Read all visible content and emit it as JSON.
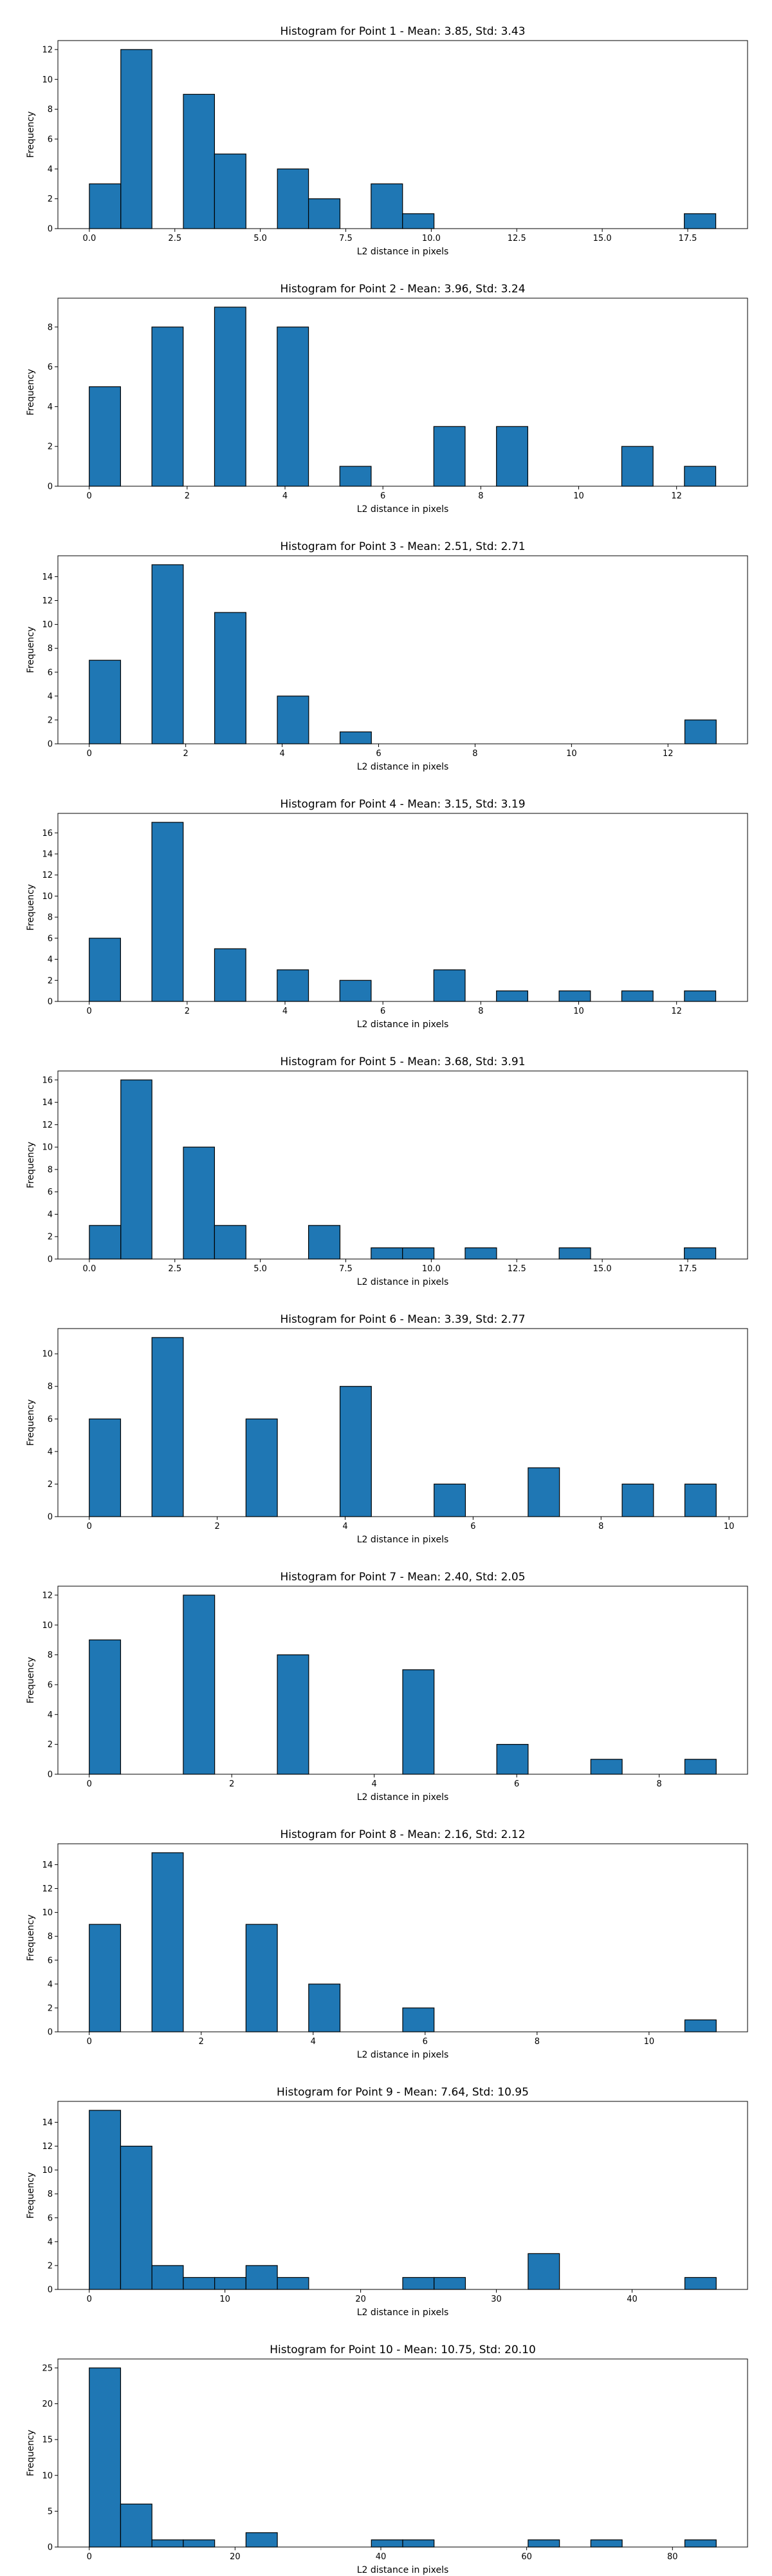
{
  "chart_data": [
    {
      "type": "bar",
      "title": "Histogram for Point 1 - Mean: 3.85, Std: 3.43",
      "xlabel": "L2 distance in pixels",
      "ylabel": "Frequency",
      "xlim": [
        -0.92,
        19.25
      ],
      "ylim": [
        0,
        12.6
      ],
      "xticks": [
        0.0,
        2.5,
        5.0,
        7.5,
        10.0,
        12.5,
        15.0,
        17.5
      ],
      "xtick_labels": [
        "0.0",
        "2.5",
        "5.0",
        "7.5",
        "10.0",
        "12.5",
        "15.0",
        "17.5"
      ],
      "yticks": [
        0,
        2,
        4,
        6,
        8,
        10,
        12
      ],
      "bin_edges": [
        0.0,
        0.92,
        1.83,
        2.75,
        3.66,
        4.58,
        5.5,
        6.41,
        7.33,
        8.24,
        9.16,
        10.08,
        10.99,
        11.91,
        12.82,
        13.74,
        14.66,
        15.57,
        16.49,
        17.4,
        18.32
      ],
      "values": [
        3,
        12,
        0,
        9,
        5,
        0,
        4,
        2,
        0,
        3,
        1,
        0,
        0,
        0,
        0,
        0,
        0,
        0,
        0,
        1
      ]
    },
    {
      "type": "bar",
      "title": "Histogram for Point 2 - Mean: 3.96, Std: 3.24",
      "xlabel": "L2 distance in pixels",
      "ylabel": "Frequency",
      "xlim": [
        -0.64,
        13.45
      ],
      "ylim": [
        0,
        9.45
      ],
      "xticks": [
        0,
        2,
        4,
        6,
        8,
        10,
        12
      ],
      "xtick_labels": [
        "0",
        "2",
        "4",
        "6",
        "8",
        "10",
        "12"
      ],
      "yticks": [
        0,
        2,
        4,
        6,
        8
      ],
      "bin_edges": [
        0.0,
        0.64,
        1.28,
        1.92,
        2.56,
        3.2,
        3.84,
        4.48,
        5.12,
        5.76,
        6.4,
        7.04,
        7.68,
        8.32,
        8.96,
        9.6,
        10.24,
        10.88,
        11.52,
        12.16,
        12.8
      ],
      "values": [
        5,
        0,
        8,
        0,
        9,
        0,
        8,
        0,
        1,
        0,
        0,
        3,
        0,
        3,
        0,
        0,
        0,
        2,
        0,
        1
      ]
    },
    {
      "type": "bar",
      "title": "Histogram for Point 3 - Mean: 2.51, Std: 2.71",
      "xlabel": "L2 distance in pixels",
      "ylabel": "Frequency",
      "xlim": [
        -0.65,
        13.65
      ],
      "ylim": [
        0,
        15.75
      ],
      "xticks": [
        0,
        2,
        4,
        6,
        8,
        10,
        12
      ],
      "xtick_labels": [
        "0",
        "2",
        "4",
        "6",
        "8",
        "10",
        "12"
      ],
      "yticks": [
        0,
        2,
        4,
        6,
        8,
        10,
        12,
        14
      ],
      "bin_edges": [
        0.0,
        0.65,
        1.3,
        1.95,
        2.6,
        3.25,
        3.9,
        4.55,
        5.2,
        5.85,
        6.5,
        7.15,
        7.8,
        8.45,
        9.1,
        9.75,
        10.4,
        11.05,
        11.7,
        12.35,
        13.0
      ],
      "values": [
        7,
        0,
        15,
        0,
        11,
        0,
        4,
        0,
        1,
        0,
        0,
        0,
        0,
        0,
        0,
        0,
        0,
        0,
        0,
        2
      ]
    },
    {
      "type": "bar",
      "title": "Histogram for Point 4 - Mean: 3.15, Std: 3.19",
      "xlabel": "L2 distance in pixels",
      "ylabel": "Frequency",
      "xlim": [
        -0.64,
        13.45
      ],
      "ylim": [
        0,
        17.85
      ],
      "xticks": [
        0,
        2,
        4,
        6,
        8,
        10,
        12
      ],
      "xtick_labels": [
        "0",
        "2",
        "4",
        "6",
        "8",
        "10",
        "12"
      ],
      "yticks": [
        0,
        2,
        4,
        6,
        8,
        10,
        12,
        14,
        16
      ],
      "bin_edges": [
        0.0,
        0.64,
        1.28,
        1.92,
        2.56,
        3.2,
        3.84,
        4.48,
        5.12,
        5.76,
        6.4,
        7.04,
        7.68,
        8.32,
        8.96,
        9.6,
        10.24,
        10.88,
        11.52,
        12.16,
        12.8
      ],
      "values": [
        6,
        0,
        17,
        0,
        5,
        0,
        3,
        0,
        2,
        0,
        0,
        3,
        0,
        1,
        0,
        1,
        0,
        1,
        0,
        1
      ]
    },
    {
      "type": "bar",
      "title": "Histogram for Point 5 - Mean: 3.68, Std: 3.91",
      "xlabel": "L2 distance in pixels",
      "ylabel": "Frequency",
      "xlim": [
        -0.92,
        19.25
      ],
      "ylim": [
        0,
        16.8
      ],
      "xticks": [
        0.0,
        2.5,
        5.0,
        7.5,
        10.0,
        12.5,
        15.0,
        17.5
      ],
      "xtick_labels": [
        "0.0",
        "2.5",
        "5.0",
        "7.5",
        "10.0",
        "12.5",
        "15.0",
        "17.5"
      ],
      "yticks": [
        0,
        2,
        4,
        6,
        8,
        10,
        12,
        14,
        16
      ],
      "bin_edges": [
        0.0,
        0.92,
        1.83,
        2.75,
        3.66,
        4.58,
        5.5,
        6.41,
        7.33,
        8.24,
        9.16,
        10.08,
        10.99,
        11.91,
        12.82,
        13.74,
        14.66,
        15.57,
        16.49,
        17.4,
        18.32
      ],
      "values": [
        3,
        16,
        0,
        10,
        3,
        0,
        0,
        3,
        0,
        1,
        1,
        0,
        1,
        0,
        0,
        1,
        0,
        0,
        0,
        1
      ]
    },
    {
      "type": "bar",
      "title": "Histogram for Point 6 - Mean: 3.39, Std: 2.77",
      "xlabel": "L2 distance in pixels",
      "ylabel": "Frequency",
      "xlim": [
        -0.49,
        10.29
      ],
      "ylim": [
        0,
        11.55
      ],
      "xticks": [
        0,
        2,
        4,
        6,
        8,
        10
      ],
      "xtick_labels": [
        "0",
        "2",
        "4",
        "6",
        "8",
        "10"
      ],
      "yticks": [
        0,
        2,
        4,
        6,
        8,
        10
      ],
      "bin_edges": [
        0.0,
        0.49,
        0.98,
        1.47,
        1.96,
        2.45,
        2.94,
        3.43,
        3.92,
        4.41,
        4.9,
        5.39,
        5.88,
        6.37,
        6.86,
        7.35,
        7.84,
        8.33,
        8.82,
        9.31,
        9.8
      ],
      "values": [
        6,
        0,
        11,
        0,
        0,
        6,
        0,
        0,
        8,
        0,
        0,
        2,
        0,
        0,
        3,
        0,
        0,
        2,
        0,
        2
      ]
    },
    {
      "type": "bar",
      "title": "Histogram for Point 7 - Mean: 2.40, Std: 2.05",
      "xlabel": "L2 distance in pixels",
      "ylabel": "Frequency",
      "xlim": [
        -0.44,
        9.24
      ],
      "ylim": [
        0,
        12.6
      ],
      "xticks": [
        0,
        2,
        4,
        6,
        8
      ],
      "xtick_labels": [
        "0",
        "2",
        "4",
        "6",
        "8"
      ],
      "yticks": [
        0,
        2,
        4,
        6,
        8,
        10,
        12
      ],
      "bin_edges": [
        0.0,
        0.44,
        0.88,
        1.32,
        1.76,
        2.2,
        2.64,
        3.08,
        3.52,
        3.96,
        4.4,
        4.84,
        5.28,
        5.72,
        6.16,
        6.6,
        7.04,
        7.48,
        7.92,
        8.36,
        8.8
      ],
      "values": [
        9,
        0,
        0,
        12,
        0,
        0,
        8,
        0,
        0,
        0,
        7,
        0,
        0,
        2,
        0,
        0,
        1,
        0,
        0,
        1
      ]
    },
    {
      "type": "bar",
      "title": "Histogram for Point 8 - Mean: 2.16, Std: 2.12",
      "xlabel": "L2 distance in pixels",
      "ylabel": "Frequency",
      "xlim": [
        -0.56,
        11.76
      ],
      "ylim": [
        0,
        15.75
      ],
      "xticks": [
        0,
        2,
        4,
        6,
        8,
        10
      ],
      "xtick_labels": [
        "0",
        "2",
        "4",
        "6",
        "8",
        "10"
      ],
      "yticks": [
        0,
        2,
        4,
        6,
        8,
        10,
        12,
        14
      ],
      "bin_edges": [
        0.0,
        0.56,
        1.12,
        1.68,
        2.24,
        2.8,
        3.36,
        3.92,
        4.48,
        5.04,
        5.6,
        6.16,
        6.72,
        7.28,
        7.84,
        8.4,
        8.96,
        9.52,
        10.08,
        10.64,
        11.2
      ],
      "values": [
        9,
        0,
        15,
        0,
        0,
        9,
        0,
        4,
        0,
        0,
        2,
        0,
        0,
        0,
        0,
        0,
        0,
        0,
        0,
        1
      ]
    },
    {
      "type": "bar",
      "title": "Histogram for Point 9 - Mean: 7.64, Std: 10.95",
      "xlabel": "L2 distance in pixels",
      "ylabel": "Frequency",
      "xlim": [
        -2.31,
        48.51
      ],
      "ylim": [
        0,
        15.75
      ],
      "xticks": [
        0,
        10,
        20,
        30,
        40
      ],
      "xtick_labels": [
        "0",
        "10",
        "20",
        "30",
        "40"
      ],
      "yticks": [
        0,
        2,
        4,
        6,
        8,
        10,
        12,
        14
      ],
      "bin_edges": [
        0.0,
        2.31,
        4.62,
        6.93,
        9.24,
        11.55,
        13.86,
        16.17,
        18.48,
        20.79,
        23.1,
        25.41,
        27.72,
        30.03,
        32.34,
        34.65,
        36.96,
        39.27,
        41.58,
        43.89,
        46.2
      ],
      "values": [
        15,
        12,
        2,
        1,
        1,
        2,
        1,
        0,
        0,
        0,
        1,
        1,
        0,
        0,
        3,
        0,
        0,
        0,
        0,
        1
      ]
    },
    {
      "type": "bar",
      "title": "Histogram for Point 10 - Mean: 10.75, Std: 20.10",
      "xlabel": "L2 distance in pixels",
      "ylabel": "Frequency",
      "xlim": [
        -4.3,
        90.3
      ],
      "ylim": [
        0,
        26.25
      ],
      "xticks": [
        0,
        20,
        40,
        60,
        80
      ],
      "xtick_labels": [
        "0",
        "20",
        "40",
        "60",
        "80"
      ],
      "yticks": [
        0,
        5,
        10,
        15,
        20,
        25
      ],
      "bin_edges": [
        0.0,
        4.3,
        8.6,
        12.9,
        17.2,
        21.5,
        25.8,
        30.1,
        34.4,
        38.7,
        43.0,
        47.3,
        51.6,
        55.9,
        60.2,
        64.5,
        68.8,
        73.1,
        77.4,
        81.7,
        86.0
      ],
      "values": [
        25,
        6,
        1,
        1,
        0,
        2,
        0,
        0,
        0,
        1,
        1,
        0,
        0,
        0,
        1,
        0,
        1,
        0,
        0,
        1
      ]
    }
  ]
}
